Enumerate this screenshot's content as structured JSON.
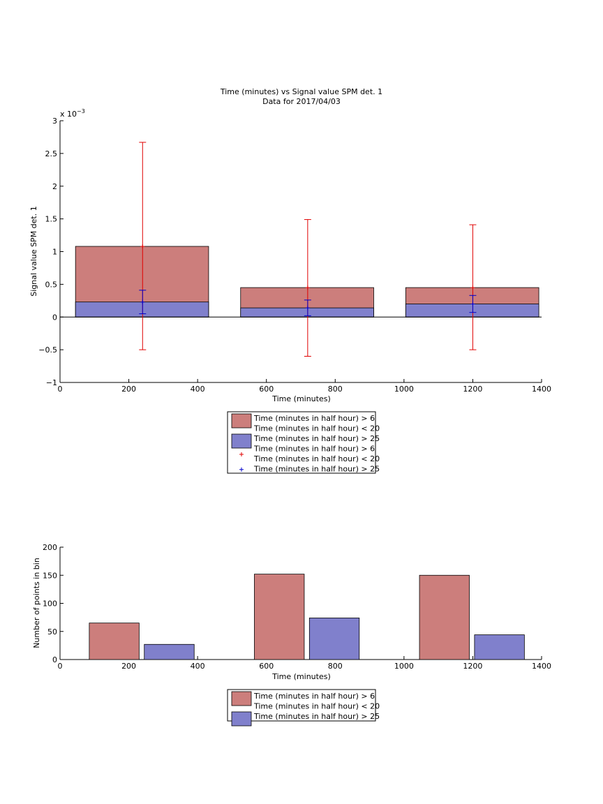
{
  "colors": {
    "red_fill": "#cc7e7c",
    "blue_fill": "#8080cc",
    "red_err": "#e00000",
    "blue_err": "#0000cc",
    "axis": "#000000"
  },
  "chart_data": [
    {
      "type": "bar",
      "title": "Time (minutes) vs Signal value SPM det. 1",
      "subtitle": "Data for 2017/04/03",
      "xlabel": "Time (minutes)",
      "ylabel": "Signal value SPM det. 1",
      "y_exponent_label": "x 10",
      "y_exponent_power": "−3",
      "xlim": [
        0,
        1400
      ],
      "ylim": [
        -1,
        3
      ],
      "x_ticks": [
        "0",
        "200",
        "400",
        "600",
        "800",
        "1000",
        "1200",
        "1400"
      ],
      "y_ticks": [
        "−1",
        "−0.5",
        "0",
        "0.5",
        "1",
        "1.5",
        "2",
        "2.5",
        "3"
      ],
      "bins": [
        {
          "x_start": 45,
          "x_end": 432,
          "center": 240
        },
        {
          "x_start": 525,
          "x_end": 912,
          "center": 720
        },
        {
          "x_start": 1005,
          "x_end": 1392,
          "center": 1200
        }
      ],
      "series": [
        {
          "name": "Time (minutes in half hour) > 6\nTime (minutes in half hour) < 20",
          "values": [
            1.08,
            0.45,
            0.45
          ]
        },
        {
          "name": "Time (minutes in half hour) > 25",
          "values": [
            0.23,
            0.14,
            0.2
          ]
        }
      ],
      "error_bars": [
        {
          "name": "Time (minutes in half hour) > 6\nTime (minutes in half hour) < 20",
          "center": [
            1.08,
            0.45,
            0.45
          ],
          "lower": [
            -0.5,
            -0.6,
            -0.5
          ],
          "upper": [
            2.67,
            1.49,
            1.41
          ]
        },
        {
          "name": "Time (minutes in half hour) > 25",
          "center": [
            0.23,
            0.14,
            0.2
          ],
          "lower": [
            0.05,
            0.02,
            0.07
          ],
          "upper": [
            0.41,
            0.26,
            0.33
          ]
        }
      ],
      "legend": {
        "placement": "below",
        "entries": [
          {
            "type": "patch",
            "color": "red_fill",
            "lines": [
              "Time (minutes in half hour) > 6",
              "Time (minutes in half hour) < 20"
            ]
          },
          {
            "type": "patch",
            "color": "blue_fill",
            "lines": [
              "Time (minutes in half hour) > 25"
            ]
          },
          {
            "type": "marker",
            "color": "red_err",
            "lines": [
              "Time (minutes in half hour) > 6",
              "Time (minutes in half hour) < 20"
            ]
          },
          {
            "type": "marker",
            "color": "blue_err",
            "lines": [
              "Time (minutes in half hour) > 25"
            ]
          }
        ]
      }
    },
    {
      "type": "bar",
      "xlabel": "Time (minutes)",
      "ylabel": "Number of points in bin",
      "xlim": [
        0,
        1400
      ],
      "ylim": [
        0,
        200
      ],
      "x_ticks": [
        "0",
        "200",
        "400",
        "600",
        "800",
        "1000",
        "1200",
        "1400"
      ],
      "y_ticks": [
        "0",
        "50",
        "100",
        "150",
        "200"
      ],
      "bars": [
        {
          "series": 0,
          "x_start": 85,
          "x_end": 230,
          "value": 65
        },
        {
          "series": 1,
          "x_start": 245,
          "x_end": 390,
          "value": 27
        },
        {
          "series": 0,
          "x_start": 565,
          "x_end": 710,
          "value": 152
        },
        {
          "series": 1,
          "x_start": 725,
          "x_end": 870,
          "value": 74
        },
        {
          "series": 0,
          "x_start": 1045,
          "x_end": 1190,
          "value": 150
        },
        {
          "series": 1,
          "x_start": 1205,
          "x_end": 1350,
          "value": 44
        }
      ],
      "series": [
        {
          "name": "Time (minutes in half hour) > 6\nTime (minutes in half hour) < 20",
          "values": [
            65,
            152,
            150
          ]
        },
        {
          "name": "Time (minutes in half hour) > 25",
          "values": [
            27,
            74,
            44
          ]
        }
      ],
      "legend": {
        "placement": "below",
        "entries": [
          {
            "type": "patch",
            "color": "red_fill",
            "lines": [
              "Time (minutes in half hour) > 6",
              "Time (minutes in half hour) < 20"
            ]
          },
          {
            "type": "patch",
            "color": "blue_fill",
            "lines": [
              "Time (minutes in half hour) > 25"
            ]
          }
        ]
      }
    }
  ]
}
